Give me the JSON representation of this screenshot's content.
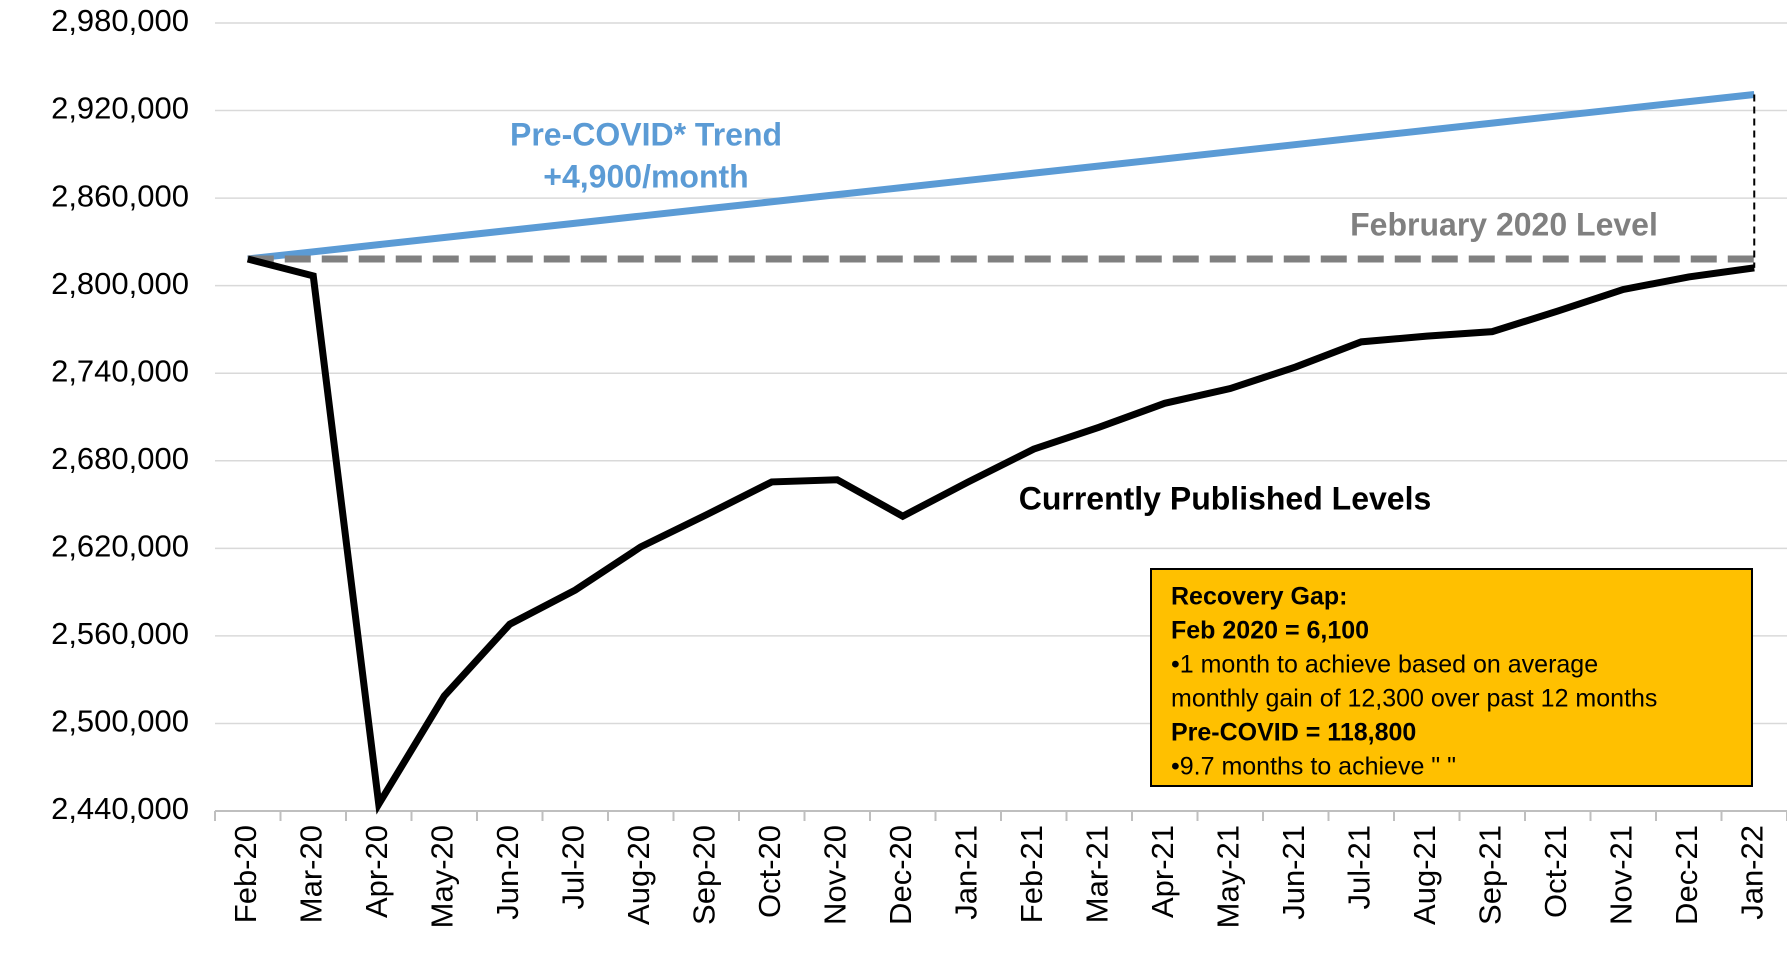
{
  "chart_data": {
    "type": "line",
    "categories": [
      "Feb-20",
      "Mar-20",
      "Apr-20",
      "May-20",
      "Jun-20",
      "Jul-20",
      "Aug-20",
      "Sep-20",
      "Oct-20",
      "Nov-20",
      "Dec-20",
      "Jan-21",
      "Feb-21",
      "Mar-21",
      "Apr-21",
      "May-21",
      "Jun-21",
      "Jul-21",
      "Aug-21",
      "Sep-21",
      "Oct-21",
      "Nov-21",
      "Dec-21",
      "Jan-22"
    ],
    "series": [
      {
        "name": "Pre-COVID* Trend",
        "color": "#5b9bd5",
        "dashed": false,
        "values": [
          2818300,
          2823200,
          2828100,
          2833000,
          2837900,
          2842800,
          2847700,
          2852600,
          2857500,
          2862400,
          2867300,
          2872200,
          2877100,
          2882000,
          2886900,
          2891800,
          2896700,
          2901600,
          2906500,
          2911400,
          2916300,
          2921200,
          2926100,
          2931000
        ]
      },
      {
        "name": "February 2020 Level",
        "color": "#808080",
        "dashed": true,
        "values": [
          2818300,
          2818300,
          2818300,
          2818300,
          2818300,
          2818300,
          2818300,
          2818300,
          2818300,
          2818300,
          2818300,
          2818300,
          2818300,
          2818300,
          2818300,
          2818300,
          2818300,
          2818300,
          2818300,
          2818300,
          2818300,
          2818300,
          2818300,
          2818300
        ]
      },
      {
        "name": "Currently Published Levels",
        "color": "#000000",
        "dashed": false,
        "values": [
          2818300,
          2806700,
          2444700,
          2518800,
          2568000,
          2591400,
          2621000,
          2642900,
          2665500,
          2667000,
          2642000,
          2665500,
          2688000,
          2703000,
          2719400,
          2729500,
          2744300,
          2761500,
          2765400,
          2768500,
          2782600,
          2797400,
          2806000,
          2812200
        ]
      }
    ],
    "ylim": [
      2440000,
      2980000
    ],
    "yticks": [
      {
        "value": 2440000,
        "label": "2,440,000"
      },
      {
        "value": 2500000,
        "label": "2,500,000"
      },
      {
        "value": 2560000,
        "label": "2,560,000"
      },
      {
        "value": 2620000,
        "label": "2,620,000"
      },
      {
        "value": 2680000,
        "label": "2,680,000"
      },
      {
        "value": 2740000,
        "label": "2,740,000"
      },
      {
        "value": 2800000,
        "label": "2,800,000"
      },
      {
        "value": 2860000,
        "label": "2,860,000"
      },
      {
        "value": 2920000,
        "label": "2,920,000"
      },
      {
        "value": 2980000,
        "label": "2,980,000"
      }
    ],
    "grid": true,
    "annotations": {
      "trend_rate": "+4,900/month",
      "box": [
        {
          "text": "Recovery Gap:",
          "bold": true
        },
        {
          "text": "Feb 2020 = 6,100",
          "bold": true
        },
        {
          "text": "•1 month to achieve based on average",
          "bold": false
        },
        {
          "text": "monthly gain of 12,300 over past 12 months",
          "bold": false
        },
        {
          "text": "Pre-COVID = 118,800",
          "bold": true
        },
        {
          "text": "•9.7 months to achieve \" \"",
          "bold": false
        }
      ]
    }
  }
}
